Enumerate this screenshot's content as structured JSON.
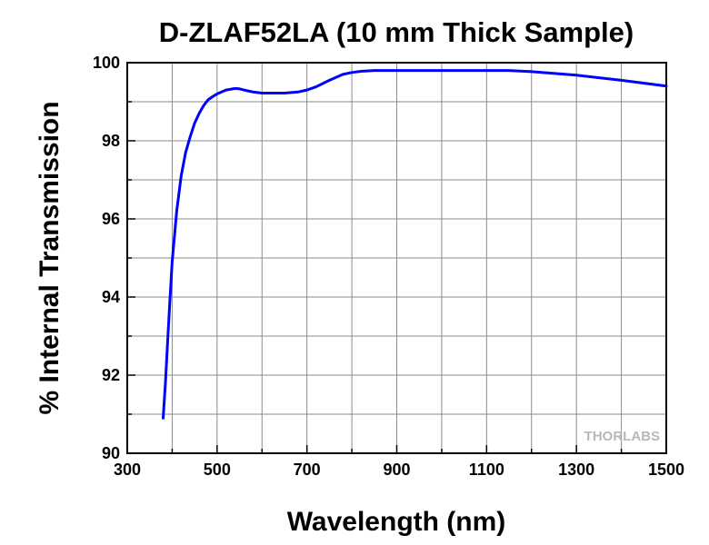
{
  "chart_data": {
    "type": "line",
    "title": "D-ZLAF52LA (10 mm Thick Sample)",
    "xlabel": "Wavelength (nm)",
    "ylabel": "% Internal Transmission",
    "xlim": [
      300,
      1500
    ],
    "ylim": [
      90,
      100
    ],
    "xticks": [
      300,
      500,
      700,
      900,
      1100,
      1300,
      1500
    ],
    "yticks": [
      90,
      92,
      94,
      96,
      98,
      100
    ],
    "grid": true,
    "series": [
      {
        "color": "#0000ff",
        "x": [
          380,
          385,
          390,
          395,
          400,
          410,
          420,
          430,
          440,
          450,
          460,
          470,
          480,
          490,
          500,
          520,
          540,
          550,
          560,
          580,
          600,
          650,
          680,
          700,
          720,
          750,
          780,
          800,
          820,
          850,
          900,
          1000,
          1100,
          1150,
          1200,
          1300,
          1400,
          1500
        ],
        "y": [
          90.9,
          91.8,
          92.9,
          93.9,
          94.9,
          96.2,
          97.1,
          97.7,
          98.1,
          98.45,
          98.7,
          98.9,
          99.05,
          99.13,
          99.2,
          99.3,
          99.34,
          99.33,
          99.3,
          99.25,
          99.22,
          99.22,
          99.25,
          99.3,
          99.38,
          99.55,
          99.7,
          99.75,
          99.78,
          99.8,
          99.8,
          99.8,
          99.8,
          99.8,
          99.77,
          99.68,
          99.55,
          99.4
        ]
      }
    ]
  },
  "watermark": {
    "text": "THORLABS"
  }
}
